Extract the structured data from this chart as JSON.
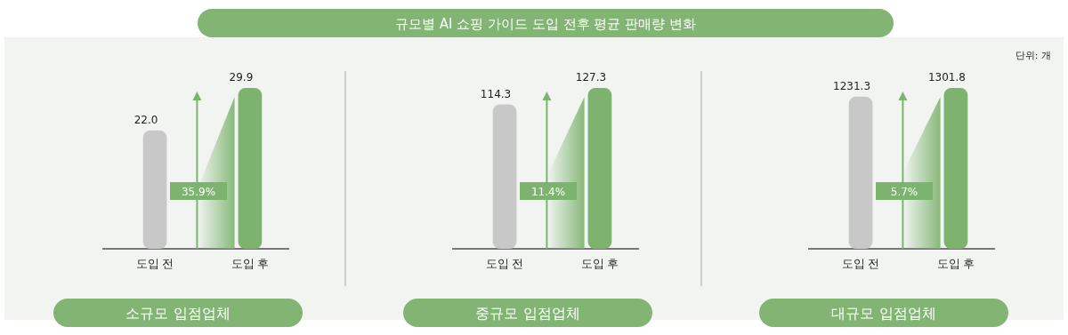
{
  "chart_data": [
    {
      "type": "bar",
      "xlabel": "소규모 입점업체",
      "categories": [
        "도입 전",
        "도입 후"
      ],
      "values": [
        22.0,
        29.9
      ],
      "value_labels": [
        "22.0",
        "29.9"
      ],
      "colors": [
        "#c8c8c8",
        "#7cb36e"
      ],
      "annotations": [
        "35.9%"
      ]
    },
    {
      "type": "bar",
      "title": "규모별 AI 쇼핑 가이드 도입 전후 평균 판매량 변화",
      "xlabel": "중규모 입점업체",
      "categories": [
        "도입 전",
        "도입 후"
      ],
      "values": [
        114.3,
        127.3
      ],
      "value_labels": [
        "114.3",
        "127.3"
      ],
      "colors": [
        "#c8c8c8",
        "#7cb36e"
      ],
      "annotations": [
        "11.4%"
      ]
    },
    {
      "type": "bar",
      "xlabel": "대규모 입점업체",
      "categories": [
        "도입 전",
        "도입 후"
      ],
      "values": [
        1231.3,
        1301.8
      ],
      "value_labels": [
        "1231.3",
        "1301.8"
      ],
      "colors": [
        "#c8c8c8",
        "#7cb36e"
      ],
      "annotations": [
        "5.7%",
        "단위: 개"
      ]
    }
  ]
}
